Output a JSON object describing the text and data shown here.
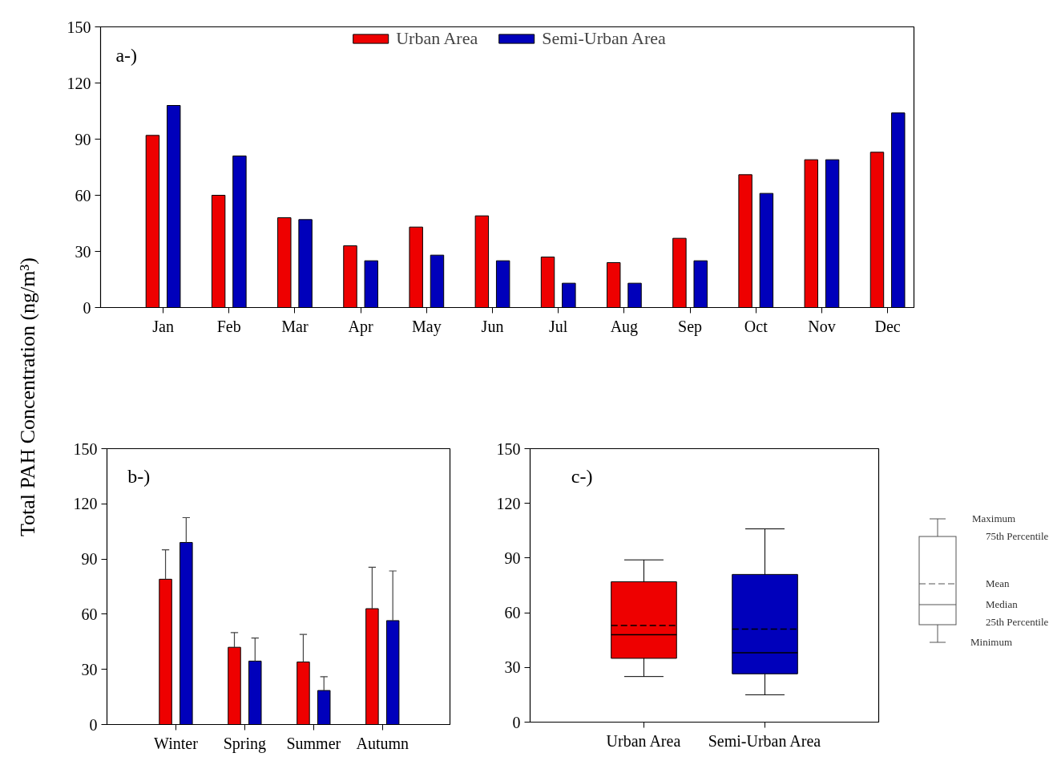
{
  "chart_data": [
    {
      "type": "bar",
      "ylabel": "Total PAH Concentration (ng/m³)",
      "annotations": [
        "a-)"
      ],
      "legend": "top",
      "categories": [
        "Jan",
        "Feb",
        "Mar",
        "Apr",
        "May",
        "Jun",
        "Jul",
        "Aug",
        "Sep",
        "Oct",
        "Nov",
        "Dec"
      ],
      "ylim": [
        0,
        150
      ],
      "yticks": [
        0,
        30,
        60,
        90,
        120,
        150
      ],
      "series": [
        {
          "name": "Urban Area",
          "color": "#ee0000",
          "values": [
            92,
            60,
            48,
            33,
            43,
            49,
            27,
            24,
            37,
            71,
            79,
            83
          ]
        },
        {
          "name": "Semi-Urban Area",
          "color": "#0000bb",
          "values": [
            108,
            81,
            47,
            25,
            28,
            25,
            13,
            13,
            25,
            61,
            79,
            104
          ]
        }
      ]
    },
    {
      "type": "bar",
      "annotations": [
        "b-)"
      ],
      "categories": [
        "Winter",
        "Spring",
        "Summer",
        "Autumn"
      ],
      "ylim": [
        0,
        150
      ],
      "yticks": [
        0,
        30,
        60,
        90,
        120,
        150
      ],
      "series": [
        {
          "color": "#ee0000",
          "values": [
            79,
            42,
            34,
            63
          ],
          "errors": [
            [
              79,
              95
            ],
            [
              42,
              50
            ],
            [
              34,
              49
            ],
            [
              63,
              85.5
            ]
          ]
        },
        {
          "color": "#0000bb",
          "values": [
            99,
            34.5,
            18.5,
            56.5
          ],
          "errors": [
            [
              99,
              112.5
            ],
            [
              34.5,
              47
            ],
            [
              18.5,
              26
            ],
            [
              56.5,
              83.5
            ]
          ]
        }
      ]
    },
    {
      "type": "box",
      "annotations": [
        "c-)",
        "Maximum",
        "75th Percentile",
        "Mean",
        "Median",
        "25th Percentile",
        "Minimum"
      ],
      "categories": [
        "Urban Area",
        "Semi-Urban Area"
      ],
      "ylim": [
        0,
        150
      ],
      "yticks": [
        0,
        30,
        60,
        90,
        120,
        150
      ],
      "colors": [
        "#ee0000",
        "#0000bb"
      ],
      "boxes": [
        {
          "low": 25,
          "q1": 35,
          "median": 48,
          "q3": 77,
          "high": 89,
          "mean": 53
        },
        {
          "low": 15,
          "q1": 26.5,
          "median": 38,
          "q3": 81,
          "high": 106,
          "mean": 51
        }
      ]
    }
  ]
}
